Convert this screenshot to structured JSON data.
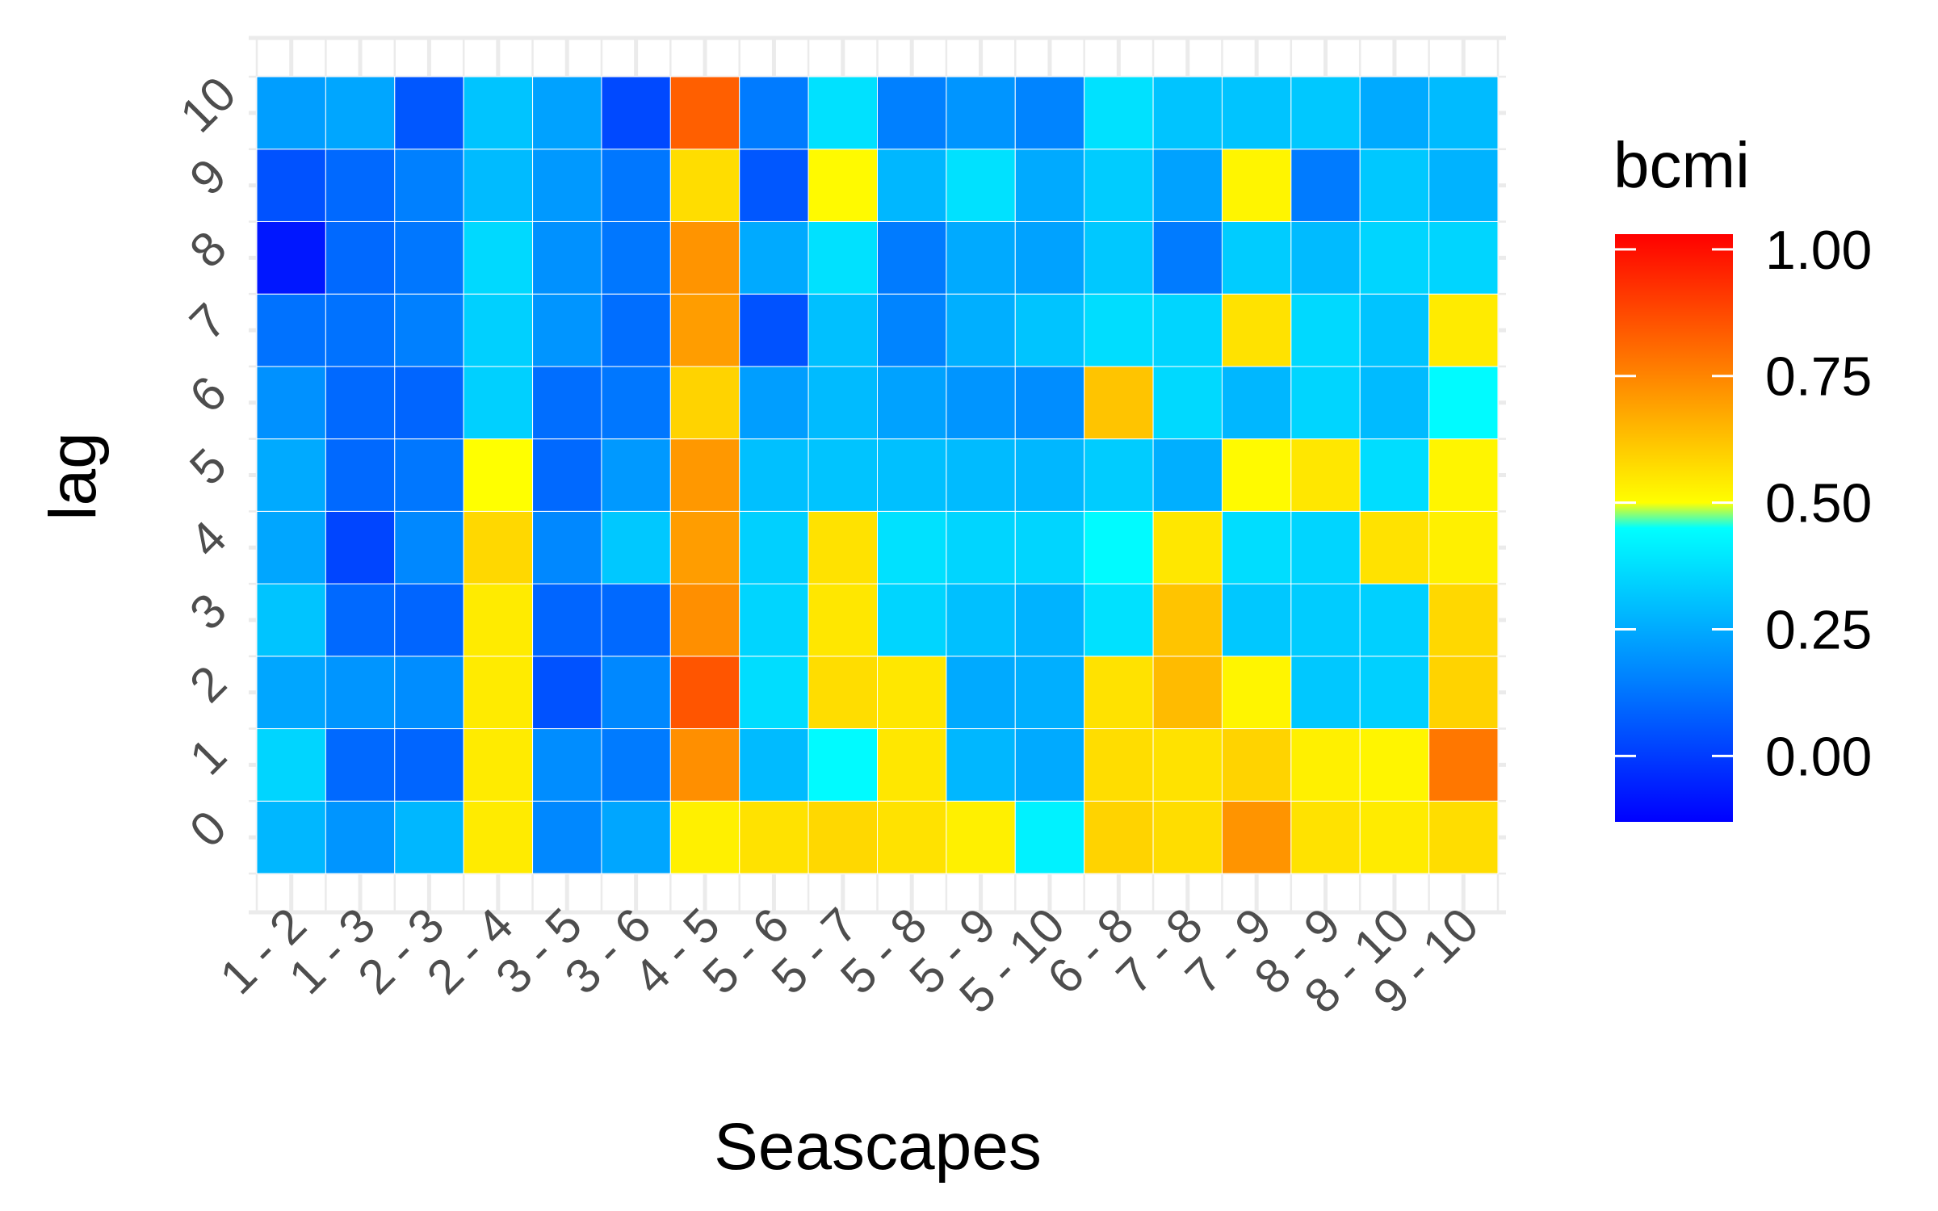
{
  "chart_data": {
    "type": "heatmap",
    "xlabel": "Seascapes",
    "ylabel": "lag",
    "x_categories": [
      "1 - 2",
      "1 - 3",
      "2 - 3",
      "2 - 4",
      "3 - 5",
      "3 - 6",
      "4 - 5",
      "5 - 6",
      "5 - 7",
      "5 - 8",
      "5 - 9",
      "5 - 10",
      "6 - 8",
      "7 - 8",
      "7 - 9",
      "8 - 9",
      "8 - 10",
      "9 - 10"
    ],
    "y_categories": [
      "0",
      "1",
      "2",
      "3",
      "4",
      "5",
      "6",
      "7",
      "8",
      "9",
      "10"
    ],
    "values": [
      [
        0.28,
        0.2,
        0.28,
        0.54,
        0.17,
        0.24,
        0.53,
        0.56,
        0.58,
        0.56,
        0.53,
        0.42,
        0.59,
        0.57,
        0.72,
        0.56,
        0.54,
        0.57
      ],
      [
        0.35,
        0.1,
        0.09,
        0.54,
        0.18,
        0.14,
        0.73,
        0.29,
        0.44,
        0.55,
        0.28,
        0.25,
        0.57,
        0.56,
        0.59,
        0.53,
        0.52,
        0.78
      ],
      [
        0.24,
        0.2,
        0.18,
        0.54,
        0.05,
        0.17,
        0.85,
        0.37,
        0.57,
        0.55,
        0.25,
        0.26,
        0.56,
        0.64,
        0.52,
        0.32,
        0.34,
        0.59
      ],
      [
        0.31,
        0.1,
        0.09,
        0.54,
        0.09,
        0.1,
        0.73,
        0.35,
        0.55,
        0.35,
        0.3,
        0.27,
        0.38,
        0.62,
        0.32,
        0.33,
        0.34,
        0.58
      ],
      [
        0.24,
        0.02,
        0.17,
        0.58,
        0.17,
        0.32,
        0.7,
        0.34,
        0.56,
        0.38,
        0.35,
        0.35,
        0.44,
        0.55,
        0.37,
        0.35,
        0.56,
        0.53
      ],
      [
        0.25,
        0.1,
        0.13,
        0.5,
        0.1,
        0.21,
        0.71,
        0.3,
        0.31,
        0.3,
        0.29,
        0.28,
        0.33,
        0.26,
        0.51,
        0.55,
        0.37,
        0.52
      ],
      [
        0.19,
        0.1,
        0.09,
        0.34,
        0.11,
        0.13,
        0.59,
        0.22,
        0.29,
        0.23,
        0.2,
        0.18,
        0.62,
        0.36,
        0.28,
        0.35,
        0.29,
        0.44
      ],
      [
        0.12,
        0.12,
        0.15,
        0.34,
        0.2,
        0.11,
        0.7,
        0.05,
        0.3,
        0.16,
        0.26,
        0.31,
        0.37,
        0.35,
        0.56,
        0.36,
        0.31,
        0.54
      ],
      [
        -0.08,
        0.1,
        0.13,
        0.36,
        0.19,
        0.13,
        0.72,
        0.25,
        0.38,
        0.14,
        0.25,
        0.23,
        0.32,
        0.14,
        0.33,
        0.29,
        0.35,
        0.35
      ],
      [
        0.05,
        0.1,
        0.15,
        0.29,
        0.21,
        0.13,
        0.57,
        0.06,
        0.51,
        0.28,
        0.38,
        0.25,
        0.33,
        0.23,
        0.52,
        0.14,
        0.32,
        0.27
      ],
      [
        0.22,
        0.24,
        0.06,
        0.31,
        0.23,
        0.03,
        0.83,
        0.14,
        0.38,
        0.15,
        0.2,
        0.16,
        0.38,
        0.31,
        0.31,
        0.32,
        0.25,
        0.29
      ]
    ],
    "legend": {
      "title": "bcmi",
      "breaks": [
        "1.00",
        "0.75",
        "0.50",
        "0.25",
        "0.00"
      ],
      "break_values": [
        1.0,
        0.75,
        0.5,
        0.25,
        0.0
      ],
      "range": [
        -0.13,
        1.03
      ],
      "placement": "right"
    },
    "colors": {
      "gradient": [
        "#0000ff",
        "#0080ff",
        "#00ffff",
        "#ffff00",
        "#ff8000",
        "#ff0000"
      ],
      "gradient_stops": [
        -0.13,
        0.15,
        0.45,
        0.5,
        0.76,
        1.03
      ],
      "grid": "#ebebeb"
    },
    "grid": true
  }
}
